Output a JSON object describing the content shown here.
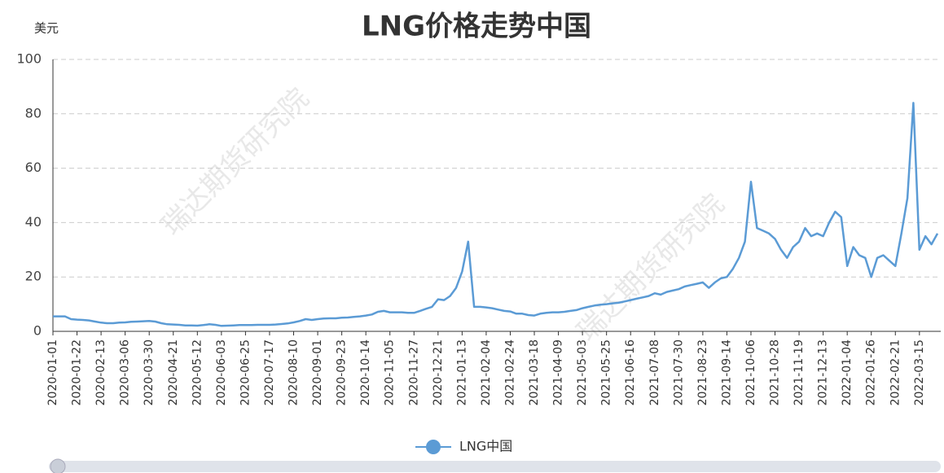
{
  "chart_data": {
    "type": "line",
    "title": "LNG价格走势中国",
    "y_label": "美元",
    "watermark": "瑞达期货研究院",
    "categories": [
      "2020-01-01",
      null,
      null,
      null,
      "2020-01-22",
      null,
      null,
      null,
      "2020-02-13",
      null,
      null,
      null,
      "2020-03-06",
      null,
      null,
      null,
      "2020-03-30",
      null,
      null,
      null,
      "2020-04-21",
      null,
      null,
      null,
      "2020-05-12",
      null,
      null,
      null,
      "2020-06-03",
      null,
      null,
      null,
      "2020-06-25",
      null,
      null,
      null,
      "2020-07-17",
      null,
      null,
      null,
      "2020-08-10",
      null,
      null,
      null,
      "2020-09-01",
      null,
      null,
      null,
      "2020-09-23",
      null,
      null,
      null,
      "2020-10-14",
      null,
      null,
      null,
      "2020-11-05",
      null,
      null,
      null,
      "2020-11-27",
      null,
      null,
      null,
      "2020-12-21",
      null,
      null,
      null,
      "2021-01-13",
      null,
      null,
      null,
      "2021-02-04",
      null,
      null,
      null,
      "2021-02-24",
      null,
      null,
      null,
      "2021-03-18",
      null,
      null,
      null,
      "2021-04-09",
      null,
      null,
      null,
      "2021-05-03",
      null,
      null,
      null,
      "2021-05-25",
      null,
      null,
      null,
      "2021-06-16",
      null,
      null,
      null,
      "2021-07-08",
      null,
      null,
      null,
      "2021-07-30",
      null,
      null,
      null,
      "2021-08-23",
      null,
      null,
      null,
      "2021-09-14",
      null,
      null,
      null,
      "2021-10-06",
      null,
      null,
      null,
      "2021-10-28",
      null,
      null,
      null,
      "2021-11-19",
      null,
      null,
      null,
      "2021-12-13",
      null,
      null,
      null,
      "2022-01-04",
      null,
      null,
      null,
      "2022-01-26",
      null,
      null,
      null,
      "2022-02-21",
      null,
      null,
      null,
      "2022-03-15",
      null,
      null,
      null
    ],
    "series": [
      {
        "name": "LNG中国",
        "color": "#5b9bd5",
        "values": [
          5.5,
          5.5,
          5.5,
          4.5,
          4.3,
          4.2,
          4,
          3.6,
          3.2,
          3,
          3,
          3.2,
          3.3,
          3.5,
          3.6,
          3.7,
          3.8,
          3.6,
          3,
          2.6,
          2.5,
          2.4,
          2.2,
          2.2,
          2.1,
          2.3,
          2.6,
          2.4,
          2,
          2.1,
          2.2,
          2.3,
          2.3,
          2.3,
          2.4,
          2.4,
          2.4,
          2.5,
          2.7,
          2.9,
          3.3,
          3.8,
          4.5,
          4.2,
          4.5,
          4.7,
          4.8,
          4.8,
          5,
          5.1,
          5.3,
          5.5,
          5.8,
          6.2,
          7.2,
          7.5,
          7,
          7,
          7,
          6.8,
          6.8,
          7.5,
          8.3,
          9,
          11.8,
          11.5,
          13,
          16,
          22,
          33,
          9,
          9,
          8.8,
          8.5,
          8,
          7.5,
          7.3,
          6.5,
          6.5,
          6,
          5.8,
          6.5,
          6.8,
          7,
          7,
          7.2,
          7.5,
          7.8,
          8.5,
          9,
          9.5,
          9.8,
          10,
          10.3,
          10.5,
          11,
          11.5,
          12,
          12.5,
          13,
          14,
          13.5,
          14.5,
          15,
          15.5,
          16.5,
          17,
          17.5,
          18,
          16,
          18,
          19.5,
          20,
          23,
          27,
          33,
          55,
          38,
          37,
          36,
          34,
          30,
          27,
          31,
          33,
          38,
          35,
          36,
          35,
          40,
          44,
          42,
          24,
          31,
          28,
          27,
          20,
          27,
          28,
          26,
          24,
          36,
          49,
          84,
          30,
          35,
          32,
          36
        ]
      }
    ],
    "ylim": [
      0,
      100
    ],
    "yticks": [
      0,
      20,
      40,
      60,
      80,
      100
    ],
    "grid": true,
    "legend": "bottom"
  }
}
